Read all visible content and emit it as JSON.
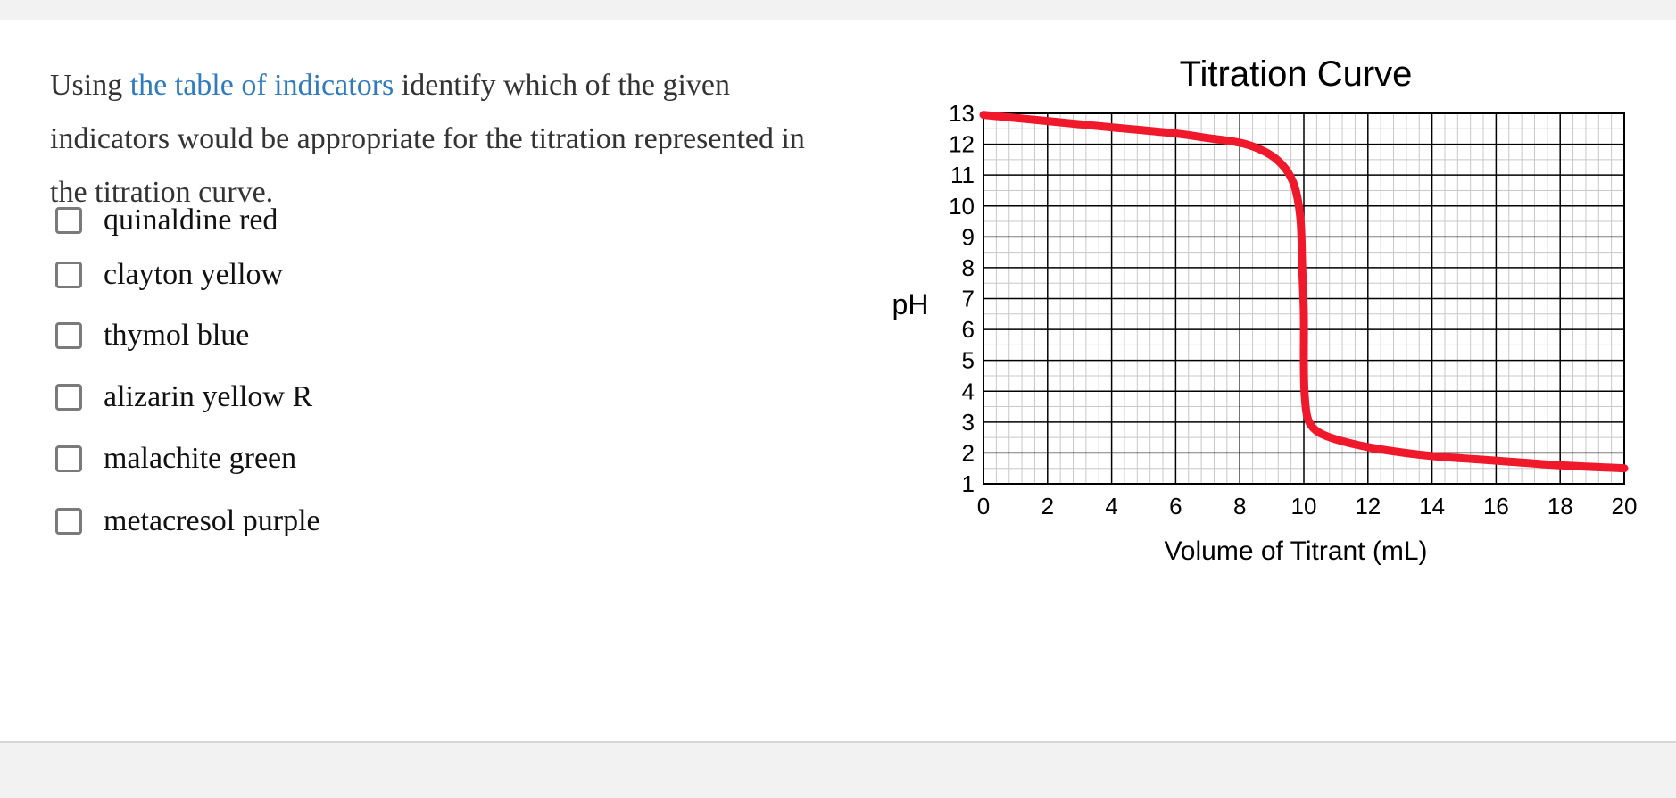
{
  "question": {
    "prefix": "Using ",
    "link_text": "the table of indicators",
    "suffix": " identify which of the given indicators would be appropriate for the titration represented in the titration curve."
  },
  "options": [
    {
      "label": "quinaldine red",
      "checked": false
    },
    {
      "label": "clayton yellow",
      "checked": false
    },
    {
      "label": "thymol blue",
      "checked": false
    },
    {
      "label": "alizarin yellow R",
      "checked": false
    },
    {
      "label": "malachite green",
      "checked": false
    },
    {
      "label": "metacresol purple",
      "checked": false
    }
  ],
  "colors": {
    "link": "#2f7bbd",
    "curve": "#f0192b",
    "major_grid": "#000000",
    "minor_grid": "#c8c8c8"
  },
  "chart_data": {
    "type": "line",
    "title": "Titration Curve",
    "xlabel": "Volume of Titrant (mL)",
    "ylabel": "pH",
    "xlim": [
      0,
      20
    ],
    "ylim": [
      1,
      13
    ],
    "xticks": [
      0,
      2,
      4,
      6,
      8,
      10,
      12,
      14,
      16,
      18,
      20
    ],
    "yticks": [
      1,
      2,
      3,
      4,
      5,
      6,
      7,
      8,
      9,
      10,
      11,
      12,
      13
    ],
    "grid": true,
    "series": [
      {
        "x": [
          0,
          2,
          4,
          6,
          7,
          8,
          8.6,
          9.1,
          9.5,
          9.75,
          9.9,
          9.95,
          10.0,
          10.0,
          10.02,
          10.1,
          10.3,
          10.7,
          11.5,
          12.5,
          14,
          16,
          18,
          20
        ],
        "y": [
          12.95,
          12.75,
          12.55,
          12.35,
          12.2,
          12.05,
          11.85,
          11.55,
          11.1,
          10.5,
          9.5,
          8.0,
          6.5,
          5.0,
          4.0,
          3.2,
          2.8,
          2.55,
          2.3,
          2.1,
          1.9,
          1.75,
          1.6,
          1.5
        ]
      }
    ]
  }
}
